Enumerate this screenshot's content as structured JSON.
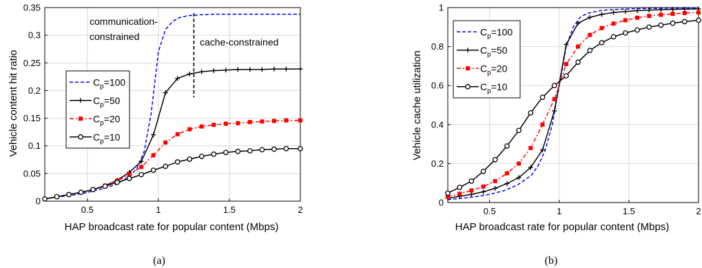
{
  "chart_data": [
    {
      "id": "a",
      "type": "line",
      "caption": "(a)",
      "xlabel": "HAP broadcast rate for popular content (Mbps)",
      "ylabel": "Vehicle content hit ratio",
      "xlim": [
        0.2,
        2
      ],
      "ylim": [
        0,
        0.35
      ],
      "xticks": [
        0.5,
        1,
        1.5,
        2
      ],
      "xtick_labels": [
        "0.5",
        "1",
        "1.5",
        "2"
      ],
      "yticks": [
        0,
        0.05,
        0.1,
        0.15,
        0.2,
        0.25,
        0.3,
        0.35
      ],
      "ytick_labels": [
        "0",
        "0.05",
        "0.1",
        "0.15",
        "0.2",
        "0.25",
        "0.3",
        "0.35"
      ],
      "grid": true,
      "legend": "center-left",
      "annotations": [
        {
          "lines": [
            "communication-",
            "constrained"
          ]
        },
        {
          "lines": [
            "cache-constrained"
          ]
        }
      ],
      "divider_x": 1.25,
      "divider_y": [
        0.188,
        0.34
      ],
      "series": [
        {
          "name_main": "C",
          "name_sub": "p",
          "name_rest": "=100",
          "color": "#0000ff",
          "dash": "5,3",
          "marker": "none",
          "x": [
            0.2,
            0.3,
            0.4,
            0.5,
            0.6,
            0.7,
            0.8,
            0.85,
            0.9,
            0.95,
            1.0,
            1.05,
            1.1,
            1.15,
            1.2,
            1.3,
            1.4,
            1.5,
            1.6,
            1.7,
            1.8,
            1.9,
            2.0
          ],
          "y": [
            0.004,
            0.008,
            0.011,
            0.016,
            0.022,
            0.03,
            0.045,
            0.06,
            0.09,
            0.16,
            0.27,
            0.31,
            0.325,
            0.332,
            0.335,
            0.337,
            0.338,
            0.338,
            0.338,
            0.338,
            0.338,
            0.338,
            0.338
          ]
        },
        {
          "name_main": "C",
          "name_sub": "p",
          "name_rest": "=50",
          "color": "#000000",
          "dash": "",
          "marker": "plus",
          "x": [
            0.2,
            0.285,
            0.37,
            0.455,
            0.54,
            0.625,
            0.71,
            0.795,
            0.88,
            0.965,
            1.05,
            1.135,
            1.22,
            1.305,
            1.39,
            1.475,
            1.56,
            1.645,
            1.73,
            1.815,
            1.9,
            2.0
          ],
          "y": [
            0.004,
            0.008,
            0.012,
            0.016,
            0.021,
            0.028,
            0.038,
            0.052,
            0.072,
            0.12,
            0.196,
            0.222,
            0.23,
            0.234,
            0.236,
            0.237,
            0.238,
            0.238,
            0.238,
            0.239,
            0.239,
            0.239
          ]
        },
        {
          "name_main": "C",
          "name_sub": "p",
          "name_rest": "=20",
          "color": "#ff0000",
          "dash": "6,3,2,3",
          "marker": "square",
          "x": [
            0.2,
            0.285,
            0.37,
            0.455,
            0.54,
            0.625,
            0.71,
            0.795,
            0.88,
            0.965,
            1.05,
            1.135,
            1.22,
            1.305,
            1.39,
            1.475,
            1.56,
            1.645,
            1.73,
            1.815,
            1.9,
            2.0
          ],
          "y": [
            0.004,
            0.008,
            0.012,
            0.016,
            0.021,
            0.028,
            0.037,
            0.048,
            0.062,
            0.083,
            0.106,
            0.121,
            0.13,
            0.135,
            0.138,
            0.14,
            0.141,
            0.143,
            0.144,
            0.145,
            0.146,
            0.146
          ]
        },
        {
          "name_main": "C",
          "name_sub": "p",
          "name_rest": "=10",
          "color": "#000000",
          "dash": "",
          "marker": "circle",
          "x": [
            0.2,
            0.285,
            0.37,
            0.455,
            0.54,
            0.625,
            0.71,
            0.795,
            0.88,
            0.965,
            1.05,
            1.135,
            1.22,
            1.305,
            1.39,
            1.475,
            1.56,
            1.645,
            1.73,
            1.815,
            1.9,
            2.0
          ],
          "y": [
            0.004,
            0.008,
            0.012,
            0.016,
            0.021,
            0.027,
            0.034,
            0.041,
            0.048,
            0.056,
            0.063,
            0.071,
            0.076,
            0.081,
            0.085,
            0.088,
            0.09,
            0.091,
            0.093,
            0.094,
            0.095,
            0.095
          ]
        }
      ]
    },
    {
      "id": "b",
      "type": "line",
      "caption": "(b)",
      "xlabel": "HAP broadcast rate for popular content (Mbps)",
      "ylabel": "Vehicle cache utilization",
      "xlim": [
        0.2,
        2
      ],
      "ylim": [
        0,
        1
      ],
      "xticks": [
        0.5,
        1,
        1.5,
        2
      ],
      "xtick_labels": [
        "0.5",
        "1",
        "1.5",
        "2"
      ],
      "yticks": [
        0,
        0.2,
        0.4,
        0.6,
        0.8,
        1
      ],
      "ytick_labels": [
        "0",
        "0.2",
        "0.4",
        "0.6",
        "0.8",
        "1"
      ],
      "grid": true,
      "legend": "top-left",
      "series": [
        {
          "name_main": "C",
          "name_sub": "p",
          "name_rest": "=100",
          "color": "#0000ff",
          "dash": "5,3",
          "marker": "none",
          "x": [
            0.2,
            0.3,
            0.4,
            0.5,
            0.6,
            0.7,
            0.8,
            0.85,
            0.9,
            0.95,
            1.0,
            1.05,
            1.1,
            1.15,
            1.2,
            1.3,
            1.4,
            1.5,
            1.6,
            1.7,
            1.8,
            1.9,
            2.0
          ],
          "y": [
            0.015,
            0.022,
            0.03,
            0.042,
            0.06,
            0.09,
            0.14,
            0.19,
            0.27,
            0.4,
            0.6,
            0.8,
            0.9,
            0.95,
            0.97,
            0.985,
            0.99,
            0.993,
            0.995,
            0.996,
            0.997,
            0.998,
            0.998
          ]
        },
        {
          "name_main": "C",
          "name_sub": "p",
          "name_rest": "=50",
          "color": "#000000",
          "dash": "",
          "marker": "plus",
          "x": [
            0.2,
            0.285,
            0.37,
            0.455,
            0.54,
            0.625,
            0.71,
            0.795,
            0.88,
            0.965,
            1.05,
            1.135,
            1.22,
            1.305,
            1.39,
            1.475,
            1.56,
            1.645,
            1.73,
            1.815,
            1.9,
            2.0
          ],
          "y": [
            0.022,
            0.032,
            0.042,
            0.055,
            0.073,
            0.097,
            0.128,
            0.18,
            0.27,
            0.47,
            0.81,
            0.92,
            0.95,
            0.965,
            0.975,
            0.98,
            0.984,
            0.987,
            0.989,
            0.991,
            0.992,
            0.993
          ]
        },
        {
          "name_main": "C",
          "name_sub": "p",
          "name_rest": "=20",
          "color": "#ff0000",
          "dash": "6,3,2,3",
          "marker": "square",
          "x": [
            0.2,
            0.285,
            0.37,
            0.455,
            0.54,
            0.625,
            0.71,
            0.795,
            0.88,
            0.965,
            1.05,
            1.135,
            1.22,
            1.305,
            1.39,
            1.475,
            1.56,
            1.645,
            1.73,
            1.815,
            1.9,
            2.0
          ],
          "y": [
            0.03,
            0.045,
            0.062,
            0.082,
            0.11,
            0.15,
            0.2,
            0.28,
            0.4,
            0.53,
            0.71,
            0.8,
            0.86,
            0.895,
            0.918,
            0.935,
            0.948,
            0.957,
            0.963,
            0.968,
            0.972,
            0.975
          ]
        },
        {
          "name_main": "C",
          "name_sub": "p",
          "name_rest": "=10",
          "color": "#000000",
          "dash": "",
          "marker": "circle",
          "x": [
            0.2,
            0.285,
            0.37,
            0.455,
            0.54,
            0.625,
            0.71,
            0.795,
            0.88,
            0.965,
            1.05,
            1.135,
            1.22,
            1.305,
            1.39,
            1.475,
            1.56,
            1.645,
            1.73,
            1.815,
            1.9,
            2.0
          ],
          "y": [
            0.048,
            0.078,
            0.11,
            0.16,
            0.22,
            0.29,
            0.37,
            0.46,
            0.54,
            0.6,
            0.65,
            0.72,
            0.78,
            0.82,
            0.85,
            0.87,
            0.885,
            0.9,
            0.91,
            0.92,
            0.928,
            0.935
          ]
        }
      ]
    }
  ]
}
